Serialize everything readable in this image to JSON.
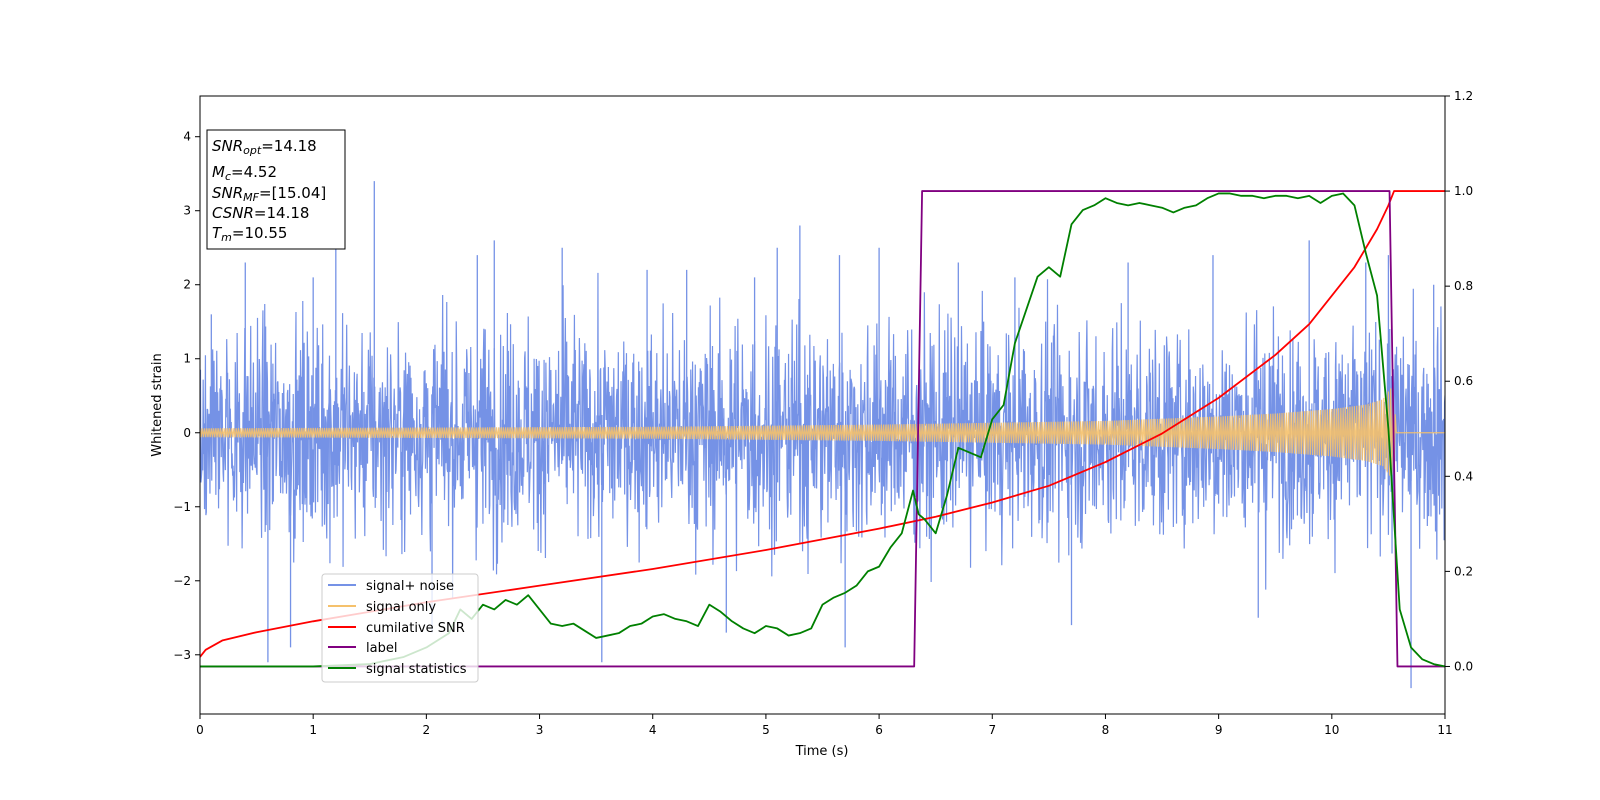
{
  "chart_data": {
    "type": "line",
    "xlabel": "Time (s)",
    "ylabel": "Whitened strain",
    "xlim": [
      0,
      11
    ],
    "ylim": [
      -3.8,
      4.55
    ],
    "y2lim": [
      -0.1,
      1.2
    ],
    "xticks": [
      "0",
      "1",
      "2",
      "3",
      "4",
      "5",
      "6",
      "7",
      "8",
      "9",
      "10",
      "11"
    ],
    "yticks": [
      "−3",
      "−2",
      "−1",
      "0",
      "1",
      "2",
      "3",
      "4"
    ],
    "y2ticks": [
      "0.0",
      "0.2",
      "0.4",
      "0.6",
      "0.8",
      "1.0",
      "1.2"
    ],
    "annotation": {
      "lines": [
        {
          "sym": "SNR",
          "sub": "opt",
          "value": "=14.18"
        },
        {
          "sym": "M",
          "sub": "c",
          "value": "=4.52"
        },
        {
          "sym": "SNR",
          "sub": "MF",
          "value": "=[15.04]"
        },
        {
          "sym": "CSNR",
          "sub": "",
          "value": "=14.18"
        },
        {
          "sym": "T",
          "sub": "m",
          "value": "=10.55"
        }
      ]
    },
    "legend": {
      "position": "lower-left",
      "entries": [
        "signal+ noise",
        "signal only",
        "cumilative SNR",
        "label",
        "signal statistics"
      ]
    },
    "series": [
      {
        "name": "signal+ noise",
        "axis": "left",
        "color": "#7592e6",
        "description": "whitened noise envelope",
        "envelope_sigma": 0.72,
        "peaks": [
          [
            0.1,
            1.6
          ],
          [
            0.4,
            2.3
          ],
          [
            0.6,
            -3.1
          ],
          [
            0.8,
            -2.9
          ],
          [
            1.0,
            2.1
          ],
          [
            1.2,
            2.6
          ],
          [
            1.54,
            3.4
          ],
          [
            2.05,
            -2.7
          ],
          [
            2.45,
            2.4
          ],
          [
            2.6,
            2.6
          ],
          [
            3.2,
            2.5
          ],
          [
            3.55,
            -3.1
          ],
          [
            3.95,
            2.2
          ],
          [
            4.3,
            2.2
          ],
          [
            4.65,
            -2.7
          ],
          [
            4.9,
            2.1
          ],
          [
            5.1,
            2.5
          ],
          [
            5.3,
            2.8
          ],
          [
            5.65,
            2.4
          ],
          [
            5.7,
            -2.9
          ],
          [
            6.0,
            2.5
          ],
          [
            6.7,
            2.3
          ],
          [
            7.2,
            2.1
          ],
          [
            7.7,
            -2.6
          ],
          [
            8.2,
            2.3
          ],
          [
            8.95,
            2.4
          ],
          [
            9.35,
            -2.5
          ],
          [
            9.8,
            2.6
          ],
          [
            10.3,
            2.3
          ],
          [
            10.5,
            2.4
          ],
          [
            10.7,
            -3.45
          ],
          [
            10.9,
            2.0
          ]
        ]
      },
      {
        "name": "signal only",
        "axis": "left",
        "color": "#f5c16c",
        "description": "chirp amplitude envelope",
        "amplitude": [
          [
            0,
            0.06
          ],
          [
            2,
            0.07
          ],
          [
            4,
            0.08
          ],
          [
            6,
            0.11
          ],
          [
            8,
            0.16
          ],
          [
            9,
            0.22
          ],
          [
            9.5,
            0.26
          ],
          [
            10,
            0.32
          ],
          [
            10.3,
            0.38
          ],
          [
            10.45,
            0.45
          ],
          [
            10.52,
            0.6
          ],
          [
            10.55,
            0.5
          ],
          [
            10.57,
            0.0
          ],
          [
            11,
            0.0
          ]
        ]
      },
      {
        "name": "cumilative SNR",
        "axis": "right",
        "color": "#ff0000",
        "x": [
          0,
          0.05,
          0.2,
          0.5,
          1,
          2,
          3,
          4,
          5,
          6,
          6.5,
          7,
          7.5,
          8,
          8.5,
          9,
          9.5,
          9.8,
          10,
          10.2,
          10.4,
          10.5,
          10.55,
          10.6,
          11
        ],
        "y": [
          0.02,
          0.035,
          0.055,
          0.072,
          0.095,
          0.135,
          0.17,
          0.205,
          0.245,
          0.29,
          0.315,
          0.345,
          0.38,
          0.43,
          0.49,
          0.565,
          0.655,
          0.72,
          0.78,
          0.84,
          0.92,
          0.97,
          1.0,
          1.0,
          1.0
        ]
      },
      {
        "name": "label",
        "axis": "right",
        "color": "#800080",
        "x": [
          0,
          6.31,
          6.38,
          10.51,
          10.58,
          11
        ],
        "y": [
          0.0,
          0.0,
          1.0,
          1.0,
          0.0,
          0.0
        ]
      },
      {
        "name": "signal statistics",
        "axis": "right",
        "color": "#008000",
        "x": [
          0,
          0.5,
          1,
          1.5,
          1.8,
          2,
          2.2,
          2.3,
          2.4,
          2.5,
          2.6,
          2.7,
          2.8,
          2.9,
          3,
          3.1,
          3.2,
          3.3,
          3.4,
          3.5,
          3.6,
          3.7,
          3.8,
          3.9,
          4,
          4.1,
          4.2,
          4.3,
          4.4,
          4.5,
          4.6,
          4.7,
          4.8,
          4.9,
          5,
          5.1,
          5.2,
          5.3,
          5.4,
          5.5,
          5.6,
          5.7,
          5.8,
          5.9,
          6,
          6.1,
          6.2,
          6.3,
          6.35,
          6.4,
          6.5,
          6.6,
          6.7,
          6.8,
          6.9,
          7,
          7.1,
          7.2,
          7.3,
          7.4,
          7.5,
          7.6,
          7.7,
          7.8,
          7.9,
          8,
          8.1,
          8.2,
          8.3,
          8.4,
          8.5,
          8.6,
          8.7,
          8.8,
          8.9,
          9,
          9.1,
          9.2,
          9.3,
          9.4,
          9.5,
          9.6,
          9.7,
          9.8,
          9.9,
          10,
          10.1,
          10.2,
          10.3,
          10.4,
          10.5,
          10.6,
          10.7,
          10.8,
          10.9,
          11
        ],
        "y": [
          0.0,
          0.0,
          0.0,
          0.005,
          0.02,
          0.04,
          0.07,
          0.12,
          0.1,
          0.13,
          0.12,
          0.14,
          0.13,
          0.15,
          0.12,
          0.09,
          0.085,
          0.09,
          0.075,
          0.06,
          0.065,
          0.07,
          0.085,
          0.09,
          0.105,
          0.11,
          0.1,
          0.095,
          0.085,
          0.13,
          0.115,
          0.095,
          0.08,
          0.07,
          0.085,
          0.08,
          0.065,
          0.07,
          0.08,
          0.13,
          0.145,
          0.155,
          0.17,
          0.2,
          0.21,
          0.25,
          0.28,
          0.37,
          0.32,
          0.31,
          0.28,
          0.36,
          0.46,
          0.45,
          0.44,
          0.52,
          0.55,
          0.68,
          0.75,
          0.82,
          0.84,
          0.82,
          0.93,
          0.96,
          0.97,
          0.985,
          0.975,
          0.97,
          0.975,
          0.97,
          0.965,
          0.955,
          0.965,
          0.97,
          0.985,
          0.995,
          0.995,
          0.99,
          0.99,
          0.985,
          0.99,
          0.99,
          0.985,
          0.99,
          0.975,
          0.99,
          0.995,
          0.97,
          0.87,
          0.78,
          0.5,
          0.12,
          0.04,
          0.015,
          0.005,
          0.0
        ]
      }
    ]
  }
}
